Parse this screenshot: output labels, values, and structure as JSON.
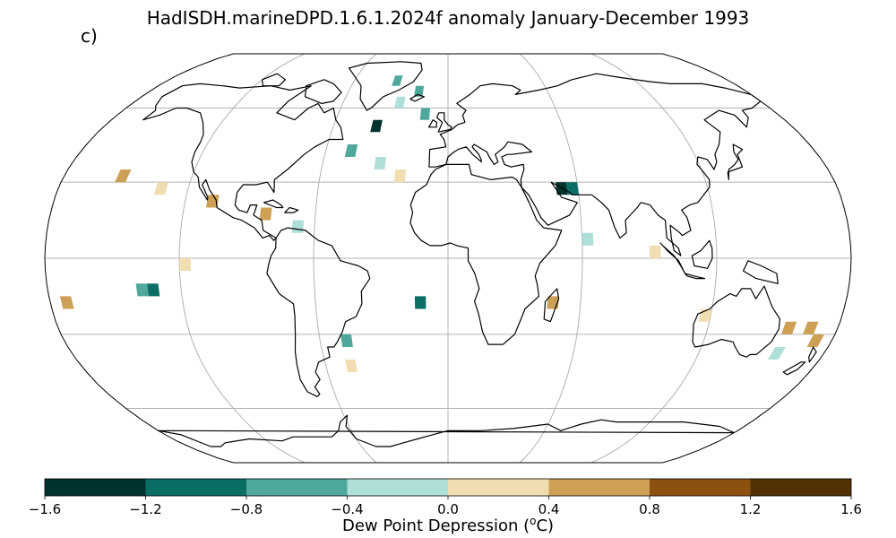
{
  "figure": {
    "title": "HadISDH.marineDPD.1.6.1.2024f anomaly January-December 1993",
    "panel_label": "c)"
  },
  "colorbar": {
    "label_prefix": "Dew Point Depression (",
    "label_sup": "o",
    "label_suffix": "C)",
    "ticks": [
      "−1.6",
      "−1.2",
      "−0.8",
      "−0.4",
      "0.0",
      "0.4",
      "0.8",
      "1.2",
      "1.6"
    ],
    "range": [
      -1.6,
      1.6
    ],
    "bins": [
      {
        "from": -1.6,
        "to": -1.2,
        "color": "#01332e"
      },
      {
        "from": -1.2,
        "to": -0.8,
        "color": "#0a6e65"
      },
      {
        "from": -0.8,
        "to": -0.4,
        "color": "#4ea89c"
      },
      {
        "from": -0.4,
        "to": 0.0,
        "color": "#aedfd8"
      },
      {
        "from": 0.0,
        "to": 0.4,
        "color": "#f0ddb0"
      },
      {
        "from": 0.4,
        "to": 0.8,
        "color": "#cda056"
      },
      {
        "from": 0.8,
        "to": 1.2,
        "color": "#8c5110"
      },
      {
        "from": 1.2,
        "to": 1.6,
        "color": "#533106"
      }
    ]
  },
  "map": {
    "projection": "Robinson",
    "gridlines": true,
    "coastline_color": "#000000",
    "grid_color": "#b3b3b3"
  },
  "chart_data": {
    "type": "heatmap",
    "variable": "Dew point depression anomaly",
    "units": "°C",
    "period": "January-December 1993",
    "cell_size_deg": 5,
    "cells_note": "approximate lat/lon grid-box centres with anomaly values",
    "cells": [
      {
        "lat": 72.5,
        "lon": -32.5,
        "value": -0.6
      },
      {
        "lat": 67.5,
        "lon": -17.5,
        "value": -0.6
      },
      {
        "lat": 62.5,
        "lon": -27.5,
        "value": -0.2
      },
      {
        "lat": 57.5,
        "lon": -12.5,
        "value": -0.6
      },
      {
        "lat": 52.5,
        "lon": -37.5,
        "value": -1.4
      },
      {
        "lat": 42.5,
        "lon": -47.5,
        "value": -0.6
      },
      {
        "lat": 37.5,
        "lon": -32.5,
        "value": -0.2
      },
      {
        "lat": 32.5,
        "lon": -22.5,
        "value": 0.2
      },
      {
        "lat": 27.5,
        "lon": 52.5,
        "value": -1.4
      },
      {
        "lat": 27.5,
        "lon": 57.5,
        "value": -1.0
      },
      {
        "lat": 32.5,
        "lon": -152.5,
        "value": 0.6
      },
      {
        "lat": 27.5,
        "lon": -132.5,
        "value": 0.2
      },
      {
        "lat": 22.5,
        "lon": -107.5,
        "value": 0.6
      },
      {
        "lat": 17.5,
        "lon": -82.5,
        "value": 0.6
      },
      {
        "lat": 12.5,
        "lon": -67.5,
        "value": -0.2
      },
      {
        "lat": 7.5,
        "lon": 62.5,
        "value": -0.2
      },
      {
        "lat": 2.5,
        "lon": 92.5,
        "value": 0.2
      },
      {
        "lat": -2.5,
        "lon": -117.5,
        "value": 0.2
      },
      {
        "lat": -12.5,
        "lon": -137.5,
        "value": -0.6
      },
      {
        "lat": -12.5,
        "lon": -132.5,
        "value": -1.0
      },
      {
        "lat": -17.5,
        "lon": -172.5,
        "value": 0.6
      },
      {
        "lat": -17.5,
        "lon": -12.5,
        "value": -1.0
      },
      {
        "lat": -17.5,
        "lon": 47.5,
        "value": 0.6
      },
      {
        "lat": -22.5,
        "lon": 117.5,
        "value": 0.2
      },
      {
        "lat": -27.5,
        "lon": 157.5,
        "value": 0.6
      },
      {
        "lat": -27.5,
        "lon": 167.5,
        "value": 0.6
      },
      {
        "lat": -32.5,
        "lon": 172.5,
        "value": 0.6
      },
      {
        "lat": -32.5,
        "lon": -47.5,
        "value": -0.6
      },
      {
        "lat": -37.5,
        "lon": 157.5,
        "value": -0.2
      },
      {
        "lat": -42.5,
        "lon": -47.5,
        "value": 0.2
      }
    ]
  }
}
